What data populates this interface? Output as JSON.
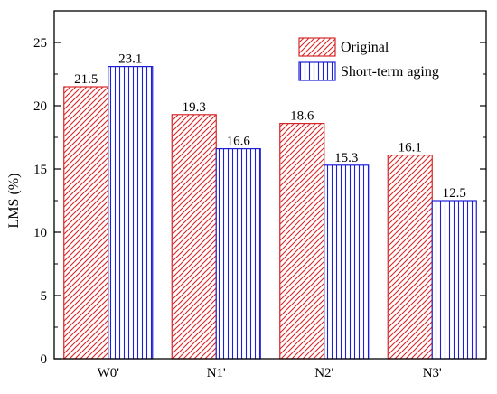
{
  "chart_data": {
    "type": "bar",
    "categories": [
      "W0'",
      "N1'",
      "N2'",
      "N3'"
    ],
    "series": [
      {
        "name": "Original",
        "values": [
          21.5,
          19.3,
          18.6,
          16.1
        ],
        "pattern": "diagonal-hatch",
        "color": "#d62728"
      },
      {
        "name": "Short-term aging",
        "values": [
          23.1,
          16.6,
          15.3,
          12.5
        ],
        "pattern": "vertical-hatch",
        "color": "#1f1fd6"
      }
    ],
    "data_labels": [
      [
        "21.5",
        "19.3",
        "18.6",
        "16.1"
      ],
      [
        "23.1",
        "16.6",
        "15.3",
        "12.5"
      ]
    ],
    "xlabel": "",
    "ylabel": "LMS (%)",
    "ylim": [
      0,
      27.5
    ],
    "yticks": [
      0,
      5,
      10,
      15,
      20,
      25
    ],
    "ytick_labels": [
      "0",
      "5",
      "10",
      "15",
      "20",
      "25"
    ],
    "grid": false,
    "legend_position": "top-right"
  }
}
